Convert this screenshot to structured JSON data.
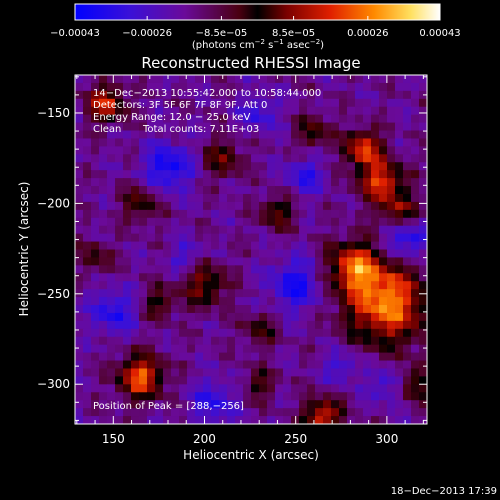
{
  "chart_data": {
    "type": "heatmap",
    "title": "Reconstructed RHESSI Image",
    "xlabel": "Heliocentric X (arcsec)",
    "ylabel": "Heliocentric Y (arcsec)",
    "xlim": [
      129,
      322
    ],
    "ylim": [
      -322,
      -129
    ],
    "x_ticks": [
      150,
      200,
      250,
      300
    ],
    "y_ticks": [
      -300,
      -250,
      -200,
      -150
    ],
    "x_tick_labels": [
      "150",
      "200",
      "250",
      "300"
    ],
    "y_tick_labels": [
      "−300",
      "−250",
      "−200",
      "−150"
    ],
    "colorbar": {
      "min": -0.00043,
      "max": 0.00043,
      "tick_values": [
        -0.00043,
        -0.00026,
        -8.5e-05,
        8.5e-05,
        0.00026,
        0.00043
      ],
      "tick_labels": [
        "−0.00043",
        "−0.00026",
        "−8.5e−05",
        "8.5e−05",
        "0.00026",
        "0.00043"
      ],
      "units_prefix": "(photons cm",
      "units_exp1": "−2",
      "units_mid": " s",
      "units_exp2": "−1",
      "units_mid2": " asec",
      "units_exp3": "−2",
      "units_suffix": ")"
    },
    "annotations": {
      "time_range": "14−Dec−2013 10:55:42.000 to 10:58:44.000",
      "detectors": "Detectors: 3F 5F 6F 7F 8F 9F, Att 0",
      "energy_range": "Energy Range: 12.0 − 25.0 keV",
      "algorithm": "Clean",
      "total_counts": "Total counts: 7.11E+03",
      "peak": "Position of Peak = [288,−256]"
    },
    "peak_position": [
      288,
      -256
    ],
    "grid": false
  },
  "footer": {
    "timestamp": "18−Dec−2013 17:39"
  }
}
